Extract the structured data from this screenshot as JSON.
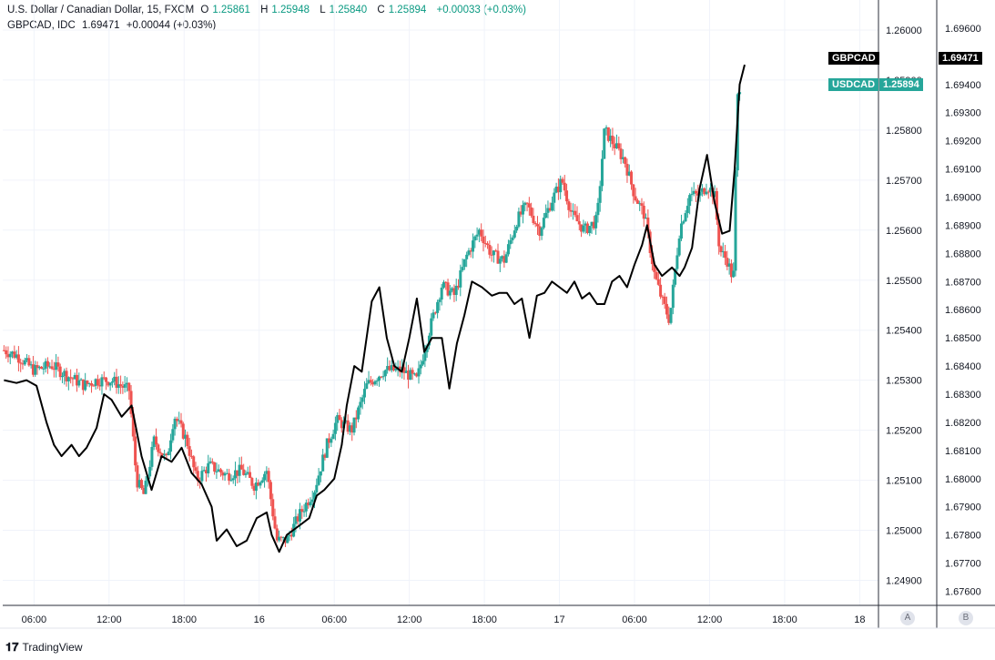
{
  "legend": {
    "primary": {
      "title": "U.S. Dollar / Canadian Dollar, 15, FXCM",
      "o_label": "O",
      "o": "1.25861",
      "h_label": "H",
      "h": "1.25948",
      "l_label": "L",
      "l": "1.25840",
      "c_label": "C",
      "c": "1.25894",
      "change": "+0.00033 (+0.03%)"
    },
    "secondary": {
      "title": "GBPCAD, IDC",
      "value": "1.69471",
      "change": "+0.00044 (+0.03%)"
    }
  },
  "price_tags": {
    "gbpcad_label": "GBPCAD",
    "gbpcad_value": "1.69471",
    "usdcad_label": "USDCAD",
    "usdcad_value": "1.25894"
  },
  "scale_buttons": {
    "a": "A",
    "b": "B"
  },
  "footer": {
    "brand": "TradingView"
  },
  "colors": {
    "up": "#26a69a",
    "down": "#ef5350",
    "line": "#000000",
    "usd_tag": "#26a69a",
    "gbp_tag": "#000000"
  },
  "chart_data": {
    "type": "candlestick",
    "x_ticks": [
      "06:00",
      "12:00",
      "18:00",
      "16",
      "06:00",
      "12:00",
      "18:00",
      "17",
      "06:00",
      "12:00",
      "18:00",
      "18"
    ],
    "x_tick_pos": [
      1.5,
      4.5,
      7.5,
      10.5,
      13.5,
      16.5,
      19.5,
      22.5,
      25.5,
      28.5,
      31.5,
      34.5
    ],
    "x_range": [
      0.25,
      35.25
    ],
    "y_left": {
      "ticks": [
        "1.26000",
        "1.25900",
        "1.25800",
        "1.25700",
        "1.25600",
        "1.25500",
        "1.25400",
        "1.25300",
        "1.25200",
        "1.25100",
        "1.25000",
        "1.24900"
      ],
      "range": [
        1.2485,
        1.2606
      ]
    },
    "y_right": {
      "ticks": [
        "1.69600",
        "1.69500",
        "1.69400",
        "1.69300",
        "1.69200",
        "1.69100",
        "1.69000",
        "1.68900",
        "1.68800",
        "1.68700",
        "1.68600",
        "1.68500",
        "1.68400",
        "1.68300",
        "1.68200",
        "1.68100",
        "1.68000",
        "1.67900",
        "1.67800",
        "1.67700",
        "1.67600"
      ],
      "range": [
        1.6755,
        1.697
      ]
    },
    "series": [
      {
        "name": "USDCAD",
        "axis": "left",
        "anchors": [
          [
            0.3,
            1.2536
          ],
          [
            0.8,
            1.2535
          ],
          [
            1.5,
            1.2532
          ],
          [
            2.2,
            1.2533
          ],
          [
            2.8,
            1.2531
          ],
          [
            3.5,
            1.2529
          ],
          [
            4.0,
            1.253
          ],
          [
            4.6,
            1.253
          ],
          [
            5.3,
            1.2528
          ],
          [
            5.6,
            1.251
          ],
          [
            5.9,
            1.2507
          ],
          [
            6.3,
            1.2518
          ],
          [
            6.8,
            1.2514
          ],
          [
            7.1,
            1.2523
          ],
          [
            7.6,
            1.2518
          ],
          [
            8.0,
            1.251
          ],
          [
            8.5,
            1.2513
          ],
          [
            9.2,
            1.2511
          ],
          [
            9.8,
            1.2512
          ],
          [
            10.3,
            1.2509
          ],
          [
            10.8,
            1.2512
          ],
          [
            11.2,
            1.2498
          ],
          [
            11.6,
            1.2498
          ],
          [
            12.1,
            1.2503
          ],
          [
            12.7,
            1.2508
          ],
          [
            13.2,
            1.2517
          ],
          [
            13.6,
            1.2522
          ],
          [
            14.2,
            1.252
          ],
          [
            14.8,
            1.2529
          ],
          [
            15.5,
            1.2532
          ],
          [
            16.2,
            1.2532
          ],
          [
            16.8,
            1.253
          ],
          [
            17.3,
            1.254
          ],
          [
            17.8,
            1.2549
          ],
          [
            18.3,
            1.2547
          ],
          [
            18.8,
            1.2555
          ],
          [
            19.3,
            1.256
          ],
          [
            19.8,
            1.2555
          ],
          [
            20.3,
            1.2554
          ],
          [
            20.8,
            1.2562
          ],
          [
            21.2,
            1.2565
          ],
          [
            21.7,
            1.256
          ],
          [
            22.2,
            1.2566
          ],
          [
            22.6,
            1.257
          ],
          [
            23.0,
            1.2563
          ],
          [
            23.5,
            1.256
          ],
          [
            24.0,
            1.2562
          ],
          [
            24.3,
            1.258
          ],
          [
            24.7,
            1.2577
          ],
          [
            25.1,
            1.2574
          ],
          [
            25.5,
            1.2567
          ],
          [
            25.9,
            1.2563
          ],
          [
            26.3,
            1.2551
          ],
          [
            26.6,
            1.2546
          ],
          [
            26.9,
            1.2542
          ],
          [
            27.3,
            1.256
          ],
          [
            27.7,
            1.2567
          ],
          [
            28.1,
            1.2567
          ],
          [
            28.4,
            1.2569
          ],
          [
            28.7,
            1.2567
          ],
          [
            28.9,
            1.2556
          ],
          [
            29.2,
            1.2554
          ],
          [
            29.45,
            1.255
          ],
          [
            29.6,
            1.2586
          ],
          [
            29.75,
            1.259
          ]
        ]
      },
      {
        "name": "GBPCAD",
        "axis": "right",
        "points": [
          [
            0.3,
            1.6835
          ],
          [
            0.8,
            1.6834
          ],
          [
            1.2,
            1.6835
          ],
          [
            1.6,
            1.6833
          ],
          [
            2.0,
            1.682
          ],
          [
            2.3,
            1.6812
          ],
          [
            2.6,
            1.6808
          ],
          [
            3.0,
            1.6812
          ],
          [
            3.3,
            1.6808
          ],
          [
            3.6,
            1.6811
          ],
          [
            4.0,
            1.6818
          ],
          [
            4.3,
            1.683
          ],
          [
            4.6,
            1.6828
          ],
          [
            5.0,
            1.6822
          ],
          [
            5.4,
            1.6826
          ],
          [
            5.8,
            1.6808
          ],
          [
            6.2,
            1.6796
          ],
          [
            6.6,
            1.6808
          ],
          [
            7.0,
            1.6806
          ],
          [
            7.4,
            1.6811
          ],
          [
            7.8,
            1.6802
          ],
          [
            8.2,
            1.6798
          ],
          [
            8.6,
            1.679
          ],
          [
            8.8,
            1.6778
          ],
          [
            9.2,
            1.6782
          ],
          [
            9.6,
            1.6776
          ],
          [
            10.0,
            1.6778
          ],
          [
            10.4,
            1.6786
          ],
          [
            10.8,
            1.6788
          ],
          [
            11.0,
            1.678
          ],
          [
            11.3,
            1.6774
          ],
          [
            11.6,
            1.678
          ],
          [
            11.9,
            1.6782
          ],
          [
            12.2,
            1.6784
          ],
          [
            12.5,
            1.6786
          ],
          [
            12.8,
            1.6794
          ],
          [
            13.1,
            1.6796
          ],
          [
            13.5,
            1.68
          ],
          [
            13.8,
            1.6812
          ],
          [
            14.0,
            1.6826
          ],
          [
            14.3,
            1.684
          ],
          [
            14.6,
            1.6838
          ],
          [
            15.0,
            1.6863
          ],
          [
            15.3,
            1.6868
          ],
          [
            15.6,
            1.685
          ],
          [
            15.9,
            1.684
          ],
          [
            16.2,
            1.6838
          ],
          [
            16.5,
            1.685
          ],
          [
            16.8,
            1.6864
          ],
          [
            17.1,
            1.6845
          ],
          [
            17.4,
            1.685
          ],
          [
            17.8,
            1.685
          ],
          [
            18.1,
            1.6832
          ],
          [
            18.4,
            1.6848
          ],
          [
            18.7,
            1.6858
          ],
          [
            19.0,
            1.687
          ],
          [
            19.4,
            1.6868
          ],
          [
            19.8,
            1.6865
          ],
          [
            20.1,
            1.6866
          ],
          [
            20.4,
            1.6866
          ],
          [
            20.7,
            1.6862
          ],
          [
            21.0,
            1.6864
          ],
          [
            21.3,
            1.685
          ],
          [
            21.6,
            1.6865
          ],
          [
            21.9,
            1.6866
          ],
          [
            22.2,
            1.687
          ],
          [
            22.5,
            1.6868
          ],
          [
            22.8,
            1.6866
          ],
          [
            23.1,
            1.687
          ],
          [
            23.4,
            1.6864
          ],
          [
            23.7,
            1.6866
          ],
          [
            24.0,
            1.6862
          ],
          [
            24.3,
            1.6862
          ],
          [
            24.6,
            1.687
          ],
          [
            24.9,
            1.6872
          ],
          [
            25.2,
            1.6868
          ],
          [
            25.5,
            1.6876
          ],
          [
            25.8,
            1.6883
          ],
          [
            26.0,
            1.689
          ],
          [
            26.3,
            1.6876
          ],
          [
            26.6,
            1.6872
          ],
          [
            27.0,
            1.6875
          ],
          [
            27.3,
            1.6872
          ],
          [
            27.5,
            1.6875
          ],
          [
            27.8,
            1.6882
          ],
          [
            28.1,
            1.6903
          ],
          [
            28.4,
            1.6915
          ],
          [
            28.7,
            1.6898
          ],
          [
            29.0,
            1.6887
          ],
          [
            29.3,
            1.6888
          ],
          [
            29.5,
            1.691
          ],
          [
            29.7,
            1.694
          ],
          [
            29.9,
            1.6947
          ]
        ]
      }
    ]
  }
}
